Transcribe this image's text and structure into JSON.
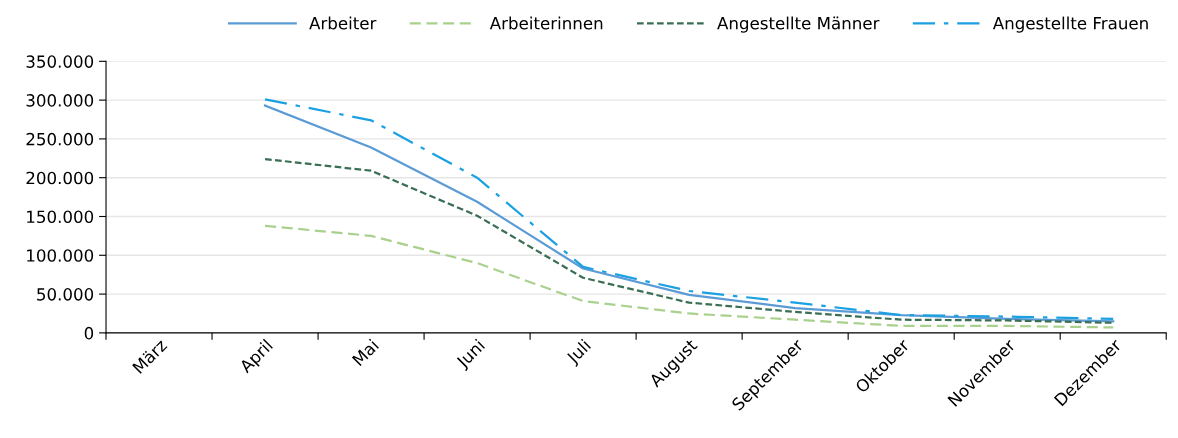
{
  "chart_data": {
    "type": "line",
    "categories": [
      "März",
      "April",
      "Mai",
      "Juni",
      "Juli",
      "August",
      "September",
      "Oktober",
      "November",
      "Dezember"
    ],
    "series": [
      {
        "name": "Arbeiter",
        "color": "#5b9bd5",
        "line_style": "solid",
        "values": [
          null,
          293000,
          239000,
          169000,
          83000,
          49000,
          32000,
          23000,
          18000,
          15000
        ]
      },
      {
        "name": "Arbeiterinnen",
        "color": "#a9d18e",
        "line_style": "dashed",
        "values": [
          null,
          138000,
          125000,
          90000,
          41000,
          25000,
          17000,
          9000,
          9000,
          7000
        ]
      },
      {
        "name": "Angestellte Männer",
        "color": "#3a6e55",
        "line_style": "dotted",
        "values": [
          null,
          224000,
          209000,
          151000,
          71000,
          39000,
          27000,
          17000,
          16000,
          13000
        ]
      },
      {
        "name": "Angestellte Frauen",
        "color": "#1ba1e2",
        "line_style": "dashdot",
        "values": [
          null,
          301000,
          274000,
          200000,
          85000,
          54000,
          39000,
          23000,
          21000,
          18000
        ]
      }
    ],
    "ylim": [
      0,
      350000
    ],
    "yticks": [
      {
        "value": 0,
        "label": "0"
      },
      {
        "value": 50000,
        "label": "50.000"
      },
      {
        "value": 100000,
        "label": "100.000"
      },
      {
        "value": 150000,
        "label": "150.000"
      },
      {
        "value": 200000,
        "label": "200.000"
      },
      {
        "value": 250000,
        "label": "250.000"
      },
      {
        "value": 300000,
        "label": "300.000"
      },
      {
        "value": 350000,
        "label": "350.000"
      }
    ],
    "grid": "y",
    "legend": "top",
    "marker": "none"
  }
}
